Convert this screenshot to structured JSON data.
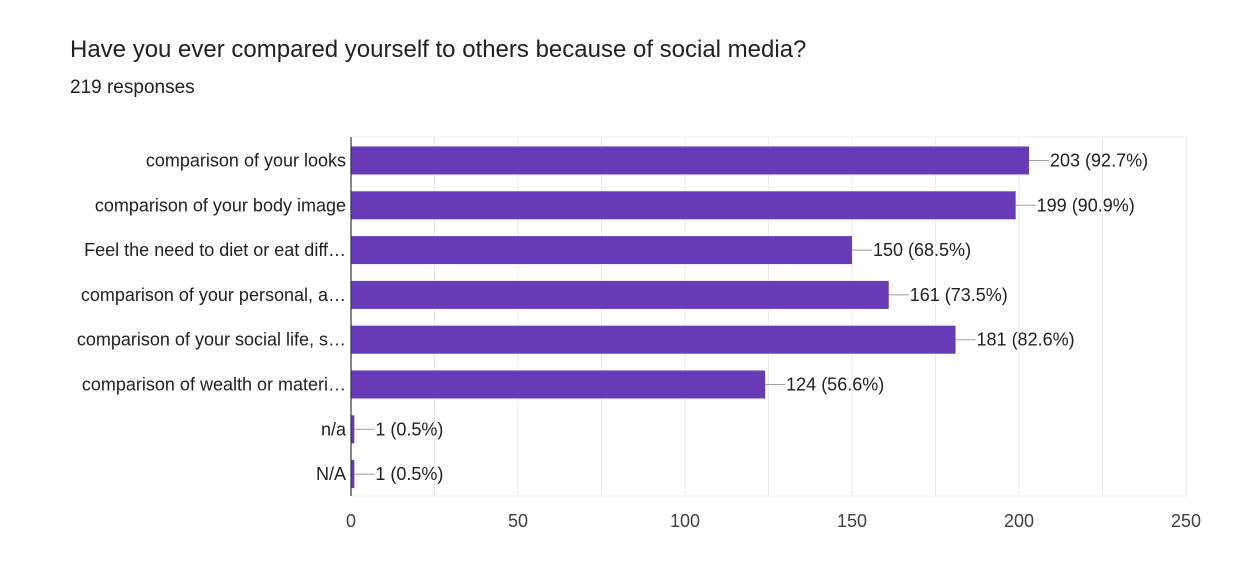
{
  "question": {
    "title": "Have you ever compared yourself to others because of social media?",
    "responses": "219 responses"
  },
  "colors": {
    "bar": "#673ab7",
    "grid": "#ebebeb",
    "axis": "#333333",
    "text": "#202124"
  },
  "chart_data": {
    "type": "bar",
    "orientation": "horizontal",
    "title": "Have you ever compared yourself to others because of social media?",
    "subtitle": "219 responses",
    "categories": [
      "comparison of your looks",
      "comparison of your body image",
      "Feel the need to diet or eat diff…",
      "comparison of your personal, a…",
      "comparison of your social life, s…",
      "comparison of wealth or materi…",
      "n/a",
      "N/A"
    ],
    "values": [
      203,
      199,
      150,
      161,
      181,
      124,
      1,
      1
    ],
    "data_labels": [
      "203 (92.7%)",
      "199 (90.9%)",
      "150 (68.5%)",
      "161 (73.5%)",
      "181 (82.6%)",
      "124 (56.6%)",
      "1 (0.5%)",
      "1 (0.5%)"
    ],
    "xlim": [
      0,
      250
    ],
    "xticks": [
      0,
      50,
      100,
      150,
      200,
      250
    ],
    "grid": true,
    "legend": "none"
  }
}
